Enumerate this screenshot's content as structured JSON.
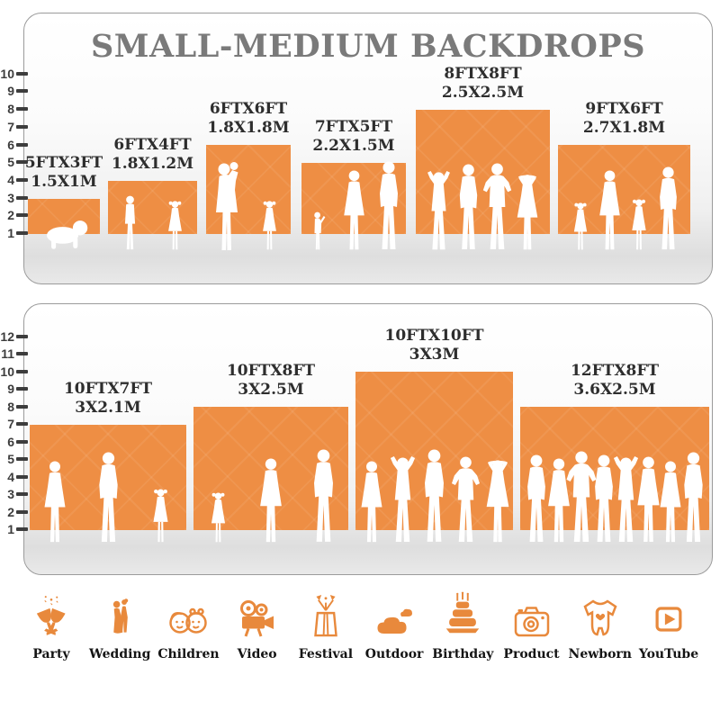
{
  "title": "SMALL-MEDIUM BACKDROPS",
  "colors": {
    "backdrop_orange": "#EE8E44",
    "icon_orange": "#E8893C",
    "title_gray": "#7A7A7A",
    "label_dark": "#2E2E2E",
    "tick_dark": "#3D3D3D"
  },
  "panels": [
    {
      "name": "small-medium-backdrops",
      "ruler_ticks": [
        1,
        2,
        3,
        4,
        5,
        6,
        7,
        8,
        9,
        10
      ],
      "backdrops": [
        {
          "size_ft": "5FTX3FT",
          "size_m": "1.5X1M",
          "w_ft": 5,
          "h_ft": 3,
          "figures": [
            "crawling-baby"
          ]
        },
        {
          "size_ft": "6FTX4FT",
          "size_m": "1.8X1.2M",
          "w_ft": 6,
          "h_ft": 4,
          "figures": [
            "boy",
            "girl"
          ]
        },
        {
          "size_ft": "6FTX6FT",
          "size_m": "1.8X1.8M",
          "w_ft": 6,
          "h_ft": 6,
          "figures": [
            "mother-holding-baby",
            "girl"
          ]
        },
        {
          "size_ft": "7FTX5FT",
          "size_m": "2.2X1.5M",
          "w_ft": 7,
          "h_ft": 5,
          "figures": [
            "toddler",
            "woman",
            "man"
          ]
        },
        {
          "size_ft": "8FTX8FT",
          "size_m": "2.5X2.5M",
          "w_ft": 8,
          "h_ft": 8,
          "figures": [
            "man-arms-up",
            "man",
            "man-hands-on-hips",
            "woman-hat"
          ]
        },
        {
          "size_ft": "9FTX6FT",
          "size_m": "2.7X1.8M",
          "w_ft": 9,
          "h_ft": 6,
          "figures": [
            "girl",
            "woman",
            "girl",
            "man"
          ]
        }
      ]
    },
    {
      "name": "medium-large-backdrops",
      "ruler_ticks": [
        1,
        2,
        3,
        4,
        5,
        6,
        7,
        8,
        9,
        10,
        11,
        12
      ],
      "backdrops": [
        {
          "size_ft": "10FTX7FT",
          "size_m": "3X2.1M",
          "w_ft": 10,
          "h_ft": 7,
          "figures": [
            "woman",
            "man",
            "girl"
          ]
        },
        {
          "size_ft": "10FTX8FT",
          "size_m": "3X2.5M",
          "w_ft": 10,
          "h_ft": 8,
          "figures": [
            "girl",
            "woman",
            "man"
          ]
        },
        {
          "size_ft": "10FTX10FT",
          "size_m": "3X3M",
          "w_ft": 10,
          "h_ft": 10,
          "figures": [
            "woman",
            "man-arms-up",
            "man",
            "man-hands-on-hips",
            "woman-hat"
          ]
        },
        {
          "size_ft": "12FTX8FT",
          "size_m": "3.6X2.5M",
          "w_ft": 12,
          "h_ft": 8,
          "figures": [
            "man",
            "woman",
            "man-hands-on-hips",
            "man",
            "man-arms-up",
            "woman",
            "woman",
            "man"
          ]
        }
      ]
    }
  ],
  "categories": [
    {
      "label": "Party",
      "icon": "party-icon"
    },
    {
      "label": "Wedding",
      "icon": "wedding-icon"
    },
    {
      "label": "Children",
      "icon": "children-icon"
    },
    {
      "label": "Video",
      "icon": "video-icon"
    },
    {
      "label": "Festival",
      "icon": "festival-icon"
    },
    {
      "label": "Outdoor",
      "icon": "outdoor-icon"
    },
    {
      "label": "Birthday",
      "icon": "birthday-icon"
    },
    {
      "label": "Product",
      "icon": "product-icon"
    },
    {
      "label": "Newborn",
      "icon": "newborn-icon"
    },
    {
      "label": "YouTube",
      "icon": "youtube-icon"
    }
  ]
}
